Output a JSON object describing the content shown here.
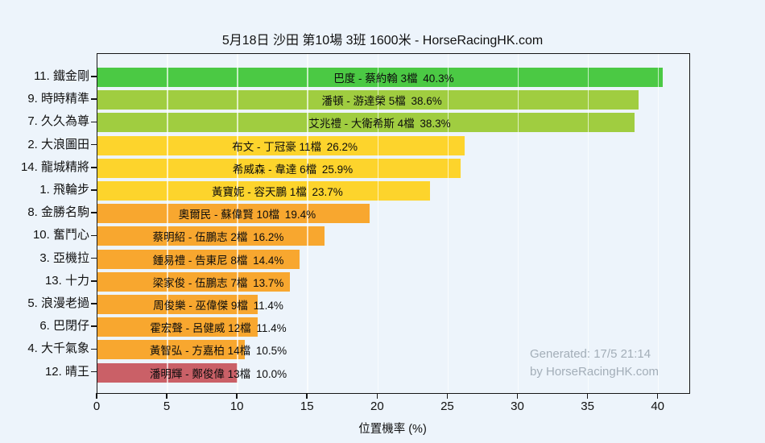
{
  "title": "5月18日  沙田  第10場  3班  1600米 - HorseRacingHK.com",
  "watermark": {
    "line1": "Generated: 17/5 21:14",
    "line2": "by HorseRacingHK.com"
  },
  "colors": {
    "background": "#edf4fb",
    "plot_border": "#161616",
    "gridline": "rgba(255,255,255,0.68)",
    "green": "#4bc944",
    "yellow_green": "#a0cd40",
    "yellow": "#fdd42c",
    "orange": "#f8a72f",
    "red": "#ca6067",
    "watermark_gray": "#a3aeb8"
  },
  "chart_data": {
    "type": "bar",
    "orientation": "horizontal",
    "title": "5月18日  沙田  第10場  3班  1600米 - HorseRacingHK.com",
    "xlabel": "位置機率 (%)",
    "ylabel": "",
    "xlim": [
      0,
      42.2
    ],
    "xticks": [
      0,
      5,
      10,
      15,
      20,
      25,
      30,
      35,
      40
    ],
    "grid": "vertical",
    "legend": "none",
    "bars": [
      {
        "category": "11. 鐵金剛",
        "label": "巴度 - 蔡約翰 3檔",
        "value": 40.3,
        "value_label": "40.3%",
        "color": "#4bc944"
      },
      {
        "category": "9. 時時精準",
        "label": "潘頓 - 游達榮 5檔",
        "value": 38.6,
        "value_label": "38.6%",
        "color": "#a0cd40"
      },
      {
        "category": "7. 久久為尊",
        "label": "艾兆禮 - 大衛希斯 4檔",
        "value": 38.3,
        "value_label": "38.3%",
        "color": "#a0cd40"
      },
      {
        "category": "2. 大浪圖田",
        "label": "布文 - 丁冠豪 11檔",
        "value": 26.2,
        "value_label": "26.2%",
        "color": "#fdd42c"
      },
      {
        "category": "14. 龍城精將",
        "label": "希威森 - 韋達 6檔",
        "value": 25.9,
        "value_label": "25.9%",
        "color": "#fdd42c"
      },
      {
        "category": "1. 飛輪步",
        "label": "黃寶妮 - 容天鵬 1檔",
        "value": 23.7,
        "value_label": "23.7%",
        "color": "#fdd42c"
      },
      {
        "category": "8. 金勝名駒",
        "label": "奧爾民 - 蘇偉賢 10檔",
        "value": 19.4,
        "value_label": "19.4%",
        "color": "#f8a72f"
      },
      {
        "category": "10. 奮鬥心",
        "label": "蔡明紹 - 伍鵬志 2檔",
        "value": 16.2,
        "value_label": "16.2%",
        "color": "#f8a72f"
      },
      {
        "category": "3. 亞機拉",
        "label": "鍾易禮 - 告東尼 8檔",
        "value": 14.4,
        "value_label": "14.4%",
        "color": "#f8a72f"
      },
      {
        "category": "13. 十力",
        "label": "梁家俊 - 伍鵬志 7檔",
        "value": 13.7,
        "value_label": "13.7%",
        "color": "#f8a72f"
      },
      {
        "category": "5. 浪漫老撾",
        "label": "周俊樂 - 巫偉傑 9檔",
        "value": 11.4,
        "value_label": "11.4%",
        "color": "#f8a72f"
      },
      {
        "category": "6. 巴閉仔",
        "label": "霍宏聲 - 呂健威 12檔",
        "value": 11.4,
        "value_label": "11.4%",
        "color": "#f8a72f"
      },
      {
        "category": "4. 大千氣象",
        "label": "黃智弘 - 方嘉柏 14檔",
        "value": 10.5,
        "value_label": "10.5%",
        "color": "#f8a72f"
      },
      {
        "category": "12. 晴王",
        "label": "潘明輝 - 鄭俊偉 13檔",
        "value": 10.0,
        "value_label": "10.0%",
        "color": "#ca6067"
      }
    ]
  }
}
